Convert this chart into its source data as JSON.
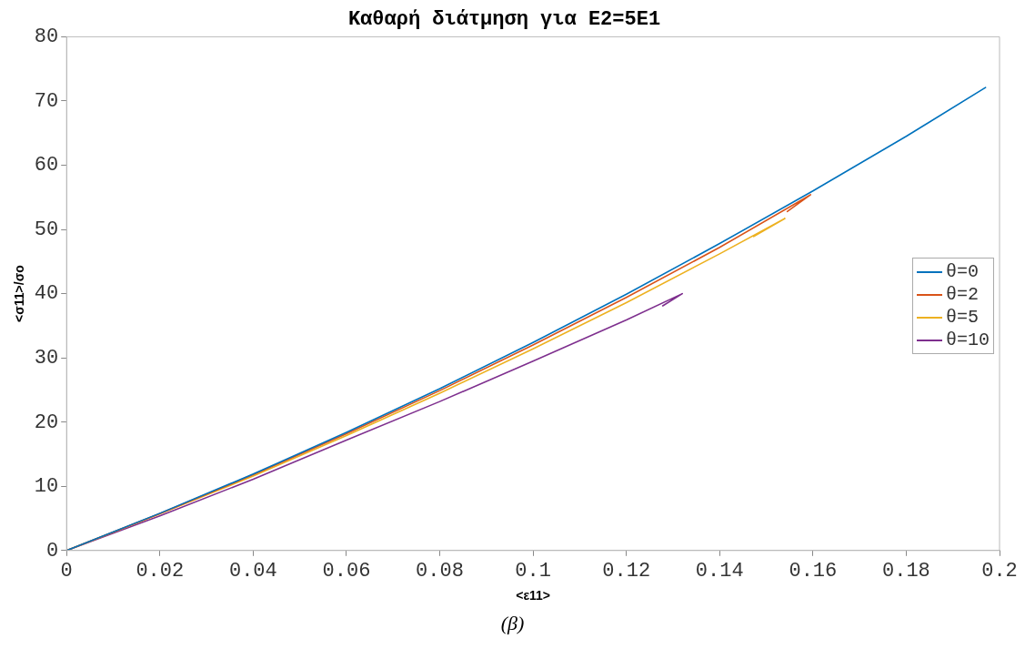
{
  "chart_data": {
    "type": "line",
    "title": "Καθαρή διάτμηση για E2=5E1",
    "xlabel": "<ε11>",
    "ylabel": "<σ11>/σo",
    "series": [
      {
        "name": "θ=0",
        "color": "#0072bd",
        "x": [
          0,
          0.02,
          0.04,
          0.06,
          0.08,
          0.1,
          0.12,
          0.14,
          0.16,
          0.18,
          0.197
        ],
        "values": [
          0,
          5.8,
          11.9,
          18.4,
          25.2,
          32.4,
          39.9,
          47.8,
          56.0,
          64.5,
          72.1
        ]
      },
      {
        "name": "θ=2",
        "color": "#d95319",
        "x": [
          0,
          0.02,
          0.04,
          0.06,
          0.08,
          0.1,
          0.12,
          0.14,
          0.1595,
          0.1545
        ],
        "values": [
          0,
          5.75,
          11.8,
          18.2,
          24.9,
          32.0,
          39.4,
          47.2,
          55.4,
          52.8
        ]
      },
      {
        "name": "θ=5",
        "color": "#edb120",
        "x": [
          0,
          0.02,
          0.04,
          0.06,
          0.08,
          0.1,
          0.12,
          0.14,
          0.154,
          0.1473
        ],
        "values": [
          0,
          5.7,
          11.6,
          17.9,
          24.5,
          31.4,
          38.6,
          46.2,
          51.7,
          48.9
        ]
      },
      {
        "name": "θ=10",
        "color": "#7e2f8e",
        "x": [
          0,
          0.02,
          0.04,
          0.06,
          0.08,
          0.1,
          0.12,
          0.132,
          0.1278
        ],
        "values": [
          0,
          5.4,
          11.1,
          17.2,
          23.2,
          29.5,
          35.9,
          40.0,
          38.1
        ]
      }
    ],
    "xlim": [
      0,
      0.2
    ],
    "xticks": [
      0,
      0.02,
      0.04,
      0.06,
      0.08,
      0.1,
      0.12,
      0.14,
      0.16,
      0.18,
      0.2
    ],
    "ylim": [
      0,
      80
    ],
    "yticks": [
      0,
      10,
      20,
      30,
      40,
      50,
      60,
      70,
      80
    ],
    "grid": false,
    "legend": "right",
    "marker": "none",
    "line_style": "solid",
    "annotations": [
      "(β)"
    ]
  }
}
